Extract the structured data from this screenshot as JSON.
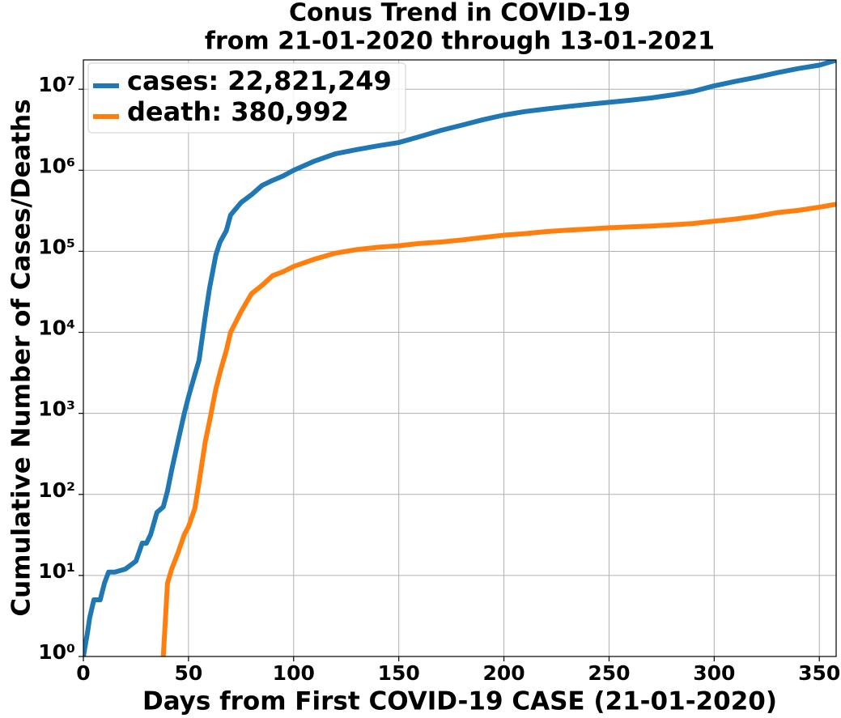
{
  "chart_data": {
    "type": "line",
    "title": [
      "Conus Trend in COVID-19",
      "from 21-01-2020 through 13-01-2021"
    ],
    "xlabel": "Days from First COVID-19 CASE (21-01-2020)",
    "ylabel": "Cumulative Number of Cases/Deaths",
    "x": [
      0,
      2,
      3,
      5,
      8,
      10,
      12,
      15,
      20,
      25,
      28,
      30,
      32,
      35,
      38,
      40,
      42,
      45,
      48,
      50,
      53,
      55,
      58,
      60,
      63,
      65,
      68,
      70,
      75,
      80,
      85,
      90,
      95,
      100,
      110,
      120,
      130,
      140,
      150,
      160,
      170,
      180,
      190,
      200,
      210,
      220,
      230,
      240,
      250,
      260,
      270,
      280,
      290,
      300,
      310,
      320,
      330,
      340,
      350,
      358
    ],
    "series": [
      {
        "name": "cases: 22,821,249",
        "color": "#1f77b4",
        "values": [
          1,
          2,
          3,
          5,
          5,
          8,
          11,
          11,
          12,
          15,
          25,
          25,
          32,
          60,
          70,
          110,
          200,
          450,
          1000,
          1600,
          3000,
          4500,
          16000,
          35000,
          90000,
          130000,
          180000,
          280000,
          400000,
          500000,
          650000,
          750000,
          850000,
          1000000,
          1300000,
          1600000,
          1800000,
          2000000,
          2200000,
          2600000,
          3100000,
          3600000,
          4200000,
          4800000,
          5300000,
          5700000,
          6100000,
          6500000,
          6900000,
          7300000,
          7800000,
          8500000,
          9400000,
          11000000,
          12500000,
          14000000,
          16000000,
          18000000,
          19800000,
          22821249
        ]
      },
      {
        "name": "death: 380,992",
        "color": "#ff7f0e",
        "values": [
          null,
          null,
          null,
          null,
          null,
          null,
          null,
          null,
          null,
          null,
          null,
          null,
          null,
          null,
          1,
          8,
          12,
          19,
          32,
          40,
          67,
          140,
          450,
          800,
          2000,
          3200,
          6000,
          10000,
          18000,
          30000,
          38000,
          50000,
          56000,
          65000,
          80000,
          95000,
          105000,
          112000,
          117000,
          125000,
          130000,
          138000,
          148000,
          158000,
          165000,
          175000,
          182000,
          188000,
          195000,
          200000,
          205000,
          212000,
          220000,
          235000,
          250000,
          270000,
          300000,
          320000,
          350000,
          380992
        ]
      }
    ],
    "xlim": [
      0,
      358
    ],
    "xticks": [
      0,
      50,
      100,
      150,
      200,
      250,
      300,
      350
    ],
    "ylim": [
      1,
      23000000
    ],
    "yscale": "log",
    "yticks": [
      {
        "value": 1,
        "label": "10⁰"
      },
      {
        "value": 10,
        "label": "10¹"
      },
      {
        "value": 100,
        "label": "10²"
      },
      {
        "value": 1000,
        "label": "10³"
      },
      {
        "value": 10000,
        "label": "10⁴"
      },
      {
        "value": 100000,
        "label": "10⁵"
      },
      {
        "value": 1000000,
        "label": "10⁶"
      },
      {
        "value": 10000000,
        "label": "10⁷"
      }
    ],
    "grid": true,
    "legend": "upper left"
  }
}
